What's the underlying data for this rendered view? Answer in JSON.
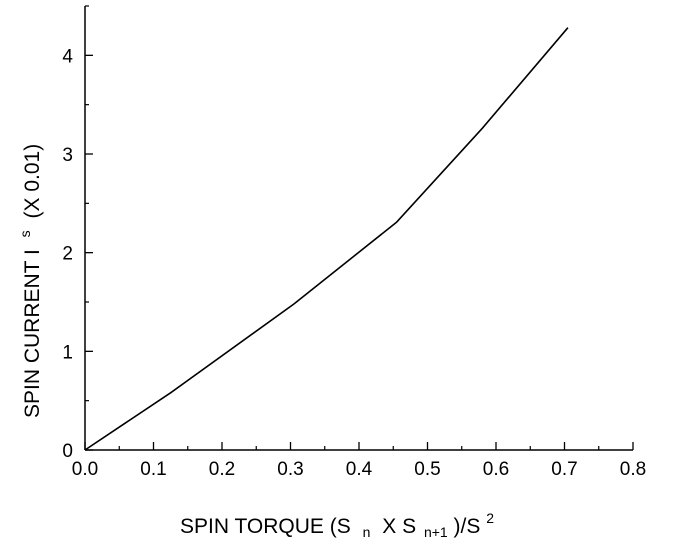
{
  "chart_data": {
    "type": "line",
    "title": "",
    "xlabel": {
      "parts": [
        "SPIN TORQUE (S",
        "n",
        "X S",
        "n+1",
        ")/S",
        "2"
      ]
    },
    "ylabel": {
      "parts": [
        "SPIN CURRENT I",
        "s",
        "(X 0.01)"
      ]
    },
    "xlim": [
      0.0,
      0.8
    ],
    "ylim": [
      0,
      4.5
    ],
    "x_ticks": [
      "0.0",
      "0.1",
      "0.2",
      "0.3",
      "0.4",
      "0.5",
      "0.6",
      "0.7",
      "0.8"
    ],
    "y_ticks": [
      "0",
      "1",
      "2",
      "3",
      "4"
    ],
    "series": [
      {
        "color": "#000000",
        "x": [
          0.0,
          0.125,
          0.305,
          0.455,
          0.58,
          0.705
        ],
        "y": [
          0.0,
          0.58,
          1.48,
          2.31,
          3.26,
          4.28
        ]
      }
    ],
    "grid": false,
    "legend": "none"
  }
}
